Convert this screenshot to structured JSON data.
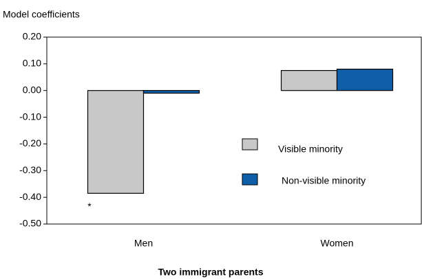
{
  "chart_data": {
    "type": "bar",
    "y_axis_label": "Model coefficients",
    "x_axis_label": "Two immigrant parents",
    "categories": [
      "Men",
      "Women"
    ],
    "series": [
      {
        "name": "Visible minority",
        "color": "#c8c8c8",
        "values": [
          -0.385,
          0.075
        ]
      },
      {
        "name": "Non-visible minority",
        "color": "#0f5fa8",
        "values": [
          -0.01,
          0.08
        ]
      }
    ],
    "annotation": "*",
    "ylim": [
      -0.5,
      0.2
    ],
    "yticks": [
      {
        "value": 0.2,
        "label": "0.20"
      },
      {
        "value": 0.1,
        "label": "0.10"
      },
      {
        "value": 0,
        "label": "0.00"
      },
      {
        "value": -0.1,
        "label": "-0.10"
      },
      {
        "value": -0.2,
        "label": "-0.20"
      },
      {
        "value": -0.3,
        "label": "-0.30"
      },
      {
        "value": -0.4,
        "label": "-0.40"
      },
      {
        "value": -0.5,
        "label": "-0.50"
      }
    ],
    "legend": "right",
    "grid": false
  }
}
